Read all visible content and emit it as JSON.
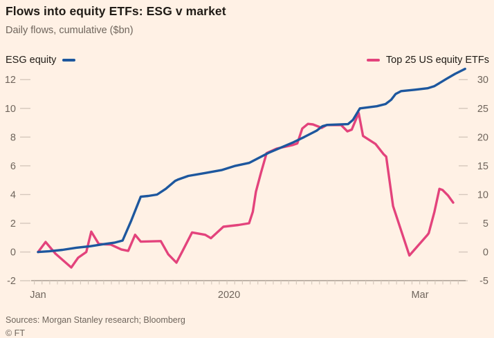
{
  "title": "Flows into equity ETFs: ESG v market",
  "subtitle": "Daily flows, cumulative ($bn)",
  "legend": {
    "left": {
      "label": "ESG equity"
    },
    "right": {
      "label": "Top 25 US equity ETFs"
    }
  },
  "source": "Sources: Morgan Stanley research; Bloomberg",
  "footer_credit": "© FT",
  "colors": {
    "background": "#FFF1E5",
    "esg_line": "#1D579E",
    "top25_line": "#E3437C",
    "title_text": "#201B16",
    "muted_text": "#6F655C",
    "tick": "#D5C8BC",
    "axis_line": "#A79C92"
  },
  "chart_data": {
    "type": "line",
    "title": "Flows into equity ETFs: ESG v market",
    "subtitle": "Daily flows, cumulative ($bn)",
    "x_unit": "days since Jan 1 2020",
    "x_ticks": [
      {
        "label": "Jan",
        "day": 0
      },
      {
        "label": "2020",
        "day": 30.5
      },
      {
        "label": "Mar",
        "day": 61
      }
    ],
    "left_axis": {
      "ticks": [
        12,
        10,
        8,
        6,
        4,
        2,
        0,
        -2
      ],
      "range": [
        -2,
        12
      ],
      "series": "ESG equity"
    },
    "right_axis": {
      "ticks": [
        30,
        25,
        20,
        15,
        10,
        5,
        0,
        -5
      ],
      "range": [
        -5,
        30
      ],
      "series": "Top 25 US equity ETFs"
    },
    "grid": "tick dashes only, no gridlines",
    "legend_position": "top, split left/right",
    "series": [
      {
        "name": "ESG equity",
        "axis": "left",
        "color": "#1D579E",
        "points": [
          [
            0,
            0
          ],
          [
            1.7,
            0.05
          ],
          [
            3.9,
            0.15
          ],
          [
            6.1,
            0.3
          ],
          [
            8.3,
            0.4
          ],
          [
            10.5,
            0.55
          ],
          [
            12.2,
            0.65
          ],
          [
            13.5,
            0.8
          ],
          [
            14.9,
            2.2
          ],
          [
            16.4,
            3.85
          ],
          [
            17.6,
            3.9
          ],
          [
            19,
            4
          ],
          [
            20.4,
            4.4
          ],
          [
            21.9,
            4.95
          ],
          [
            22.4,
            5.05
          ],
          [
            24,
            5.3
          ],
          [
            26.7,
            5.5
          ],
          [
            29.3,
            5.7
          ],
          [
            31.5,
            6
          ],
          [
            33.7,
            6.2
          ],
          [
            36.8,
            6.9
          ],
          [
            40.6,
            7.6
          ],
          [
            42.5,
            8
          ],
          [
            44.5,
            8.45
          ],
          [
            45.4,
            8.75
          ],
          [
            46.2,
            8.85
          ],
          [
            49.5,
            8.9
          ],
          [
            50.3,
            9.2
          ],
          [
            51.4,
            10
          ],
          [
            54.1,
            10.15
          ],
          [
            55.5,
            10.3
          ],
          [
            56.4,
            10.6
          ],
          [
            57.1,
            11
          ],
          [
            58,
            11.2
          ],
          [
            60.2,
            11.3
          ],
          [
            62.2,
            11.4
          ],
          [
            63.3,
            11.55
          ],
          [
            65.2,
            12.05
          ],
          [
            66.6,
            12.4
          ],
          [
            68.2,
            12.75
          ]
        ]
      },
      {
        "name": "Top 25 US equity ETFs",
        "axis": "right",
        "color": "#E3437C",
        "points": [
          [
            0,
            0
          ],
          [
            1.2,
            1.75
          ],
          [
            2.8,
            -0.3
          ],
          [
            5.3,
            -2.7
          ],
          [
            6.4,
            -1
          ],
          [
            7.7,
            0
          ],
          [
            8.5,
            3.55
          ],
          [
            9.7,
            1.4
          ],
          [
            11.6,
            1.3
          ],
          [
            13.3,
            0.45
          ],
          [
            14.4,
            0.2
          ],
          [
            15.5,
            3
          ],
          [
            16.4,
            1.8
          ],
          [
            19.6,
            1.9
          ],
          [
            20.8,
            -0.4
          ],
          [
            22.1,
            -1.85
          ],
          [
            23,
            0
          ],
          [
            24.6,
            3.4
          ],
          [
            26.7,
            3
          ],
          [
            27.6,
            2.4
          ],
          [
            29.6,
            4.4
          ],
          [
            32,
            4.7
          ],
          [
            33.7,
            5
          ],
          [
            34.3,
            7
          ],
          [
            34.8,
            10.5
          ],
          [
            35.6,
            13.8
          ],
          [
            36.5,
            17.2
          ],
          [
            38.1,
            18
          ],
          [
            40.6,
            18.6
          ],
          [
            41.4,
            18.9
          ],
          [
            42.2,
            21.5
          ],
          [
            43.1,
            22.3
          ],
          [
            43.9,
            22.2
          ],
          [
            45.3,
            21.6
          ],
          [
            46.1,
            22.1
          ],
          [
            48.4,
            22.1
          ],
          [
            49.4,
            21
          ],
          [
            50.1,
            21.3
          ],
          [
            51.2,
            24.2
          ],
          [
            51.9,
            20.2
          ],
          [
            53.9,
            18.8
          ],
          [
            55.2,
            17
          ],
          [
            55.6,
            16.6
          ],
          [
            56.7,
            8
          ],
          [
            59.3,
            -0.6
          ],
          [
            62.2,
            3
          ],
          [
            62.4,
            3.3
          ],
          [
            63.3,
            7
          ],
          [
            64.1,
            11
          ],
          [
            64.6,
            10.8
          ],
          [
            65.5,
            9.8
          ],
          [
            66.3,
            8.6
          ]
        ]
      }
    ]
  }
}
